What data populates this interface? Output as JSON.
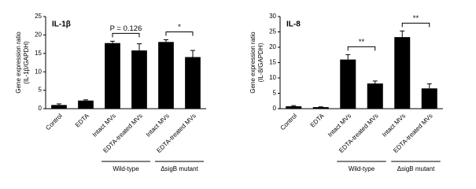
{
  "chart_data": [
    {
      "type": "bar",
      "title": "IL-1β",
      "y_label": [
        "Gene expression ratio",
        "(IL-1β/GAPDH)"
      ],
      "categories": [
        "Control",
        "EDTA",
        "Intact MVs",
        "EDTA-treated MVs",
        "Intact MVs",
        "EDTA-treated MVs"
      ],
      "values": [
        1.0,
        2.2,
        17.8,
        15.8,
        18.1,
        14.0
      ],
      "errors": [
        0.3,
        0.2,
        0.5,
        1.8,
        0.6,
        1.8
      ],
      "color": "#000000",
      "ylim": [
        0,
        25
      ],
      "yticks": [
        0,
        5,
        10,
        15,
        20,
        25
      ],
      "groups": [
        {
          "name": "Wild-type",
          "annotation": "P = 0.126"
        },
        {
          "name": "ΔsigB mutant",
          "annotation": "*"
        }
      ]
    },
    {
      "type": "bar",
      "title": "IL-8",
      "y_label": [
        "Gene expression ratio",
        "(IL-8/GAPDH)"
      ],
      "categories": [
        "Control",
        "EDTA",
        "Intact MVs",
        "EDTA-treated MVs",
        "Intact MVs",
        "EDTA-treated MVs"
      ],
      "values": [
        0.8,
        0.5,
        16.0,
        8.2,
        23.3,
        6.6
      ],
      "errors": [
        0.2,
        0.1,
        1.6,
        0.8,
        2.0,
        1.5
      ],
      "color": "#000000",
      "ylim": [
        0,
        30
      ],
      "yticks": [
        0,
        5,
        10,
        15,
        20,
        25,
        30
      ],
      "groups": [
        {
          "name": "Wild-type",
          "annotation": "**"
        },
        {
          "name": "ΔsigB mutant",
          "annotation": "**"
        }
      ]
    }
  ]
}
